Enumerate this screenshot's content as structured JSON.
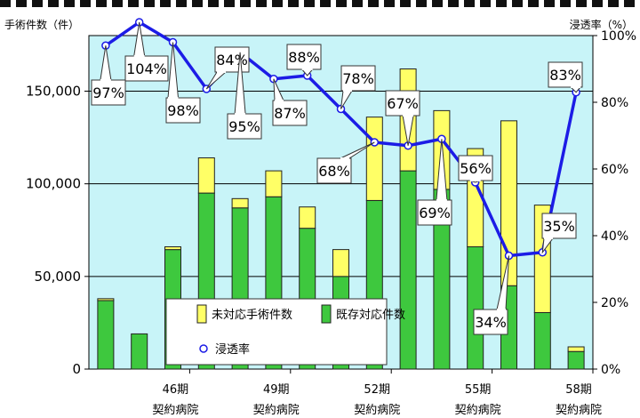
{
  "chart_data": {
    "type": "bar",
    "left_axis_title": "手術件数（件）",
    "right_axis_title": "浸透率（%）",
    "ylim_left": [
      0,
      180000
    ],
    "ylim_right": [
      0,
      1.0
    ],
    "yticks_left": [
      "0",
      "50,000",
      "100,000",
      "150,000"
    ],
    "yticks_right": [
      "0%",
      "20%",
      "40%",
      "60%",
      "80%",
      "100%"
    ],
    "grid": true,
    "x_tick_labels": [
      {
        "period": "46期",
        "label": "契約病院"
      },
      {
        "period": "49期",
        "label": "契約病院"
      },
      {
        "period": "52期",
        "label": "契約病院"
      },
      {
        "period": "55期",
        "label": "契約病院"
      },
      {
        "period": "58期",
        "label": "契約病院"
      }
    ],
    "series": [
      {
        "name": "既存対応件数",
        "color": "#3ec83e",
        "values": [
          37000,
          19000,
          64500,
          95000,
          87000,
          93000,
          76000,
          50000,
          91000,
          107000,
          97000,
          66000,
          45000,
          30500,
          9500
        ]
      },
      {
        "name": "未対応手術件数",
        "color": "#ffff66",
        "values": [
          1000,
          0,
          1500,
          19000,
          5000,
          14000,
          11500,
          14500,
          45000,
          55000,
          42500,
          53000,
          89000,
          58000,
          2500
        ]
      },
      {
        "name": "浸透率",
        "color": "#1c1ce6",
        "values": [
          0.97,
          1.04,
          0.98,
          0.84,
          0.95,
          0.87,
          0.88,
          0.78,
          0.68,
          0.67,
          0.69,
          0.56,
          0.34,
          0.35,
          0.83
        ],
        "labels": [
          "97%",
          "104%",
          "98%",
          "84%",
          "95%",
          "87%",
          "88%",
          "78%",
          "68%",
          "67%",
          "69%",
          "56%",
          "34%",
          "35%",
          "83%"
        ]
      }
    ],
    "legend": {
      "position": "bottom-left",
      "items": [
        "未対応手術件数",
        "既存対応件数",
        "浸透率"
      ]
    },
    "colors": {
      "plot_background": "#c8f4f8",
      "bar_outline": "#222222"
    }
  }
}
